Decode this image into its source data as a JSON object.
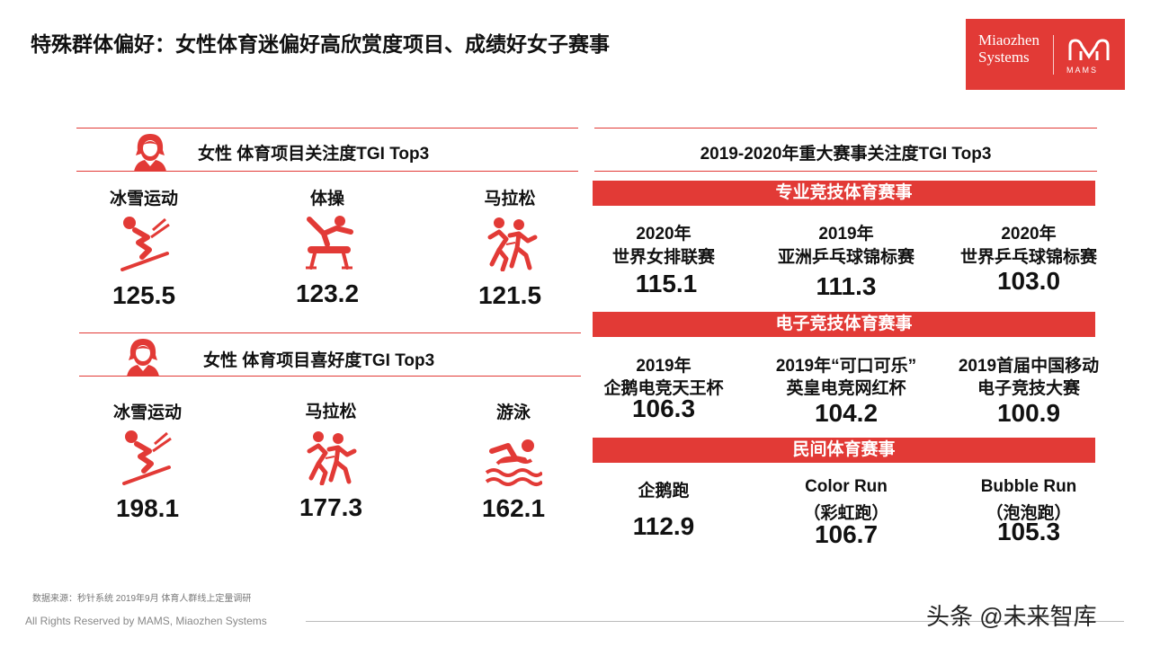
{
  "title": "特殊群体偏好：女性体育迷偏好高欣赏度项目、成绩好女子赛事",
  "logo": {
    "line1": "Miaozhen",
    "line2": "Systems",
    "brand": "MAMS"
  },
  "colors": {
    "accent": "#e23a36"
  },
  "attention": {
    "title": "女性 体育项目关注度TGI Top3",
    "items": [
      {
        "label": "冰雪运动",
        "value": "125.5",
        "icon": "skiing-icon"
      },
      {
        "label": "体操",
        "value": "123.2",
        "icon": "gymnastics-icon"
      },
      {
        "label": "马拉松",
        "value": "121.5",
        "icon": "marathon-icon"
      }
    ]
  },
  "preference": {
    "title": "女性 体育项目喜好度TGI Top3",
    "items": [
      {
        "label": "冰雪运动",
        "value": "198.1",
        "icon": "skiing-icon"
      },
      {
        "label": "马拉松",
        "value": "177.3",
        "icon": "marathon-icon"
      },
      {
        "label": "游泳",
        "value": "162.1",
        "icon": "swimming-icon"
      }
    ]
  },
  "events": {
    "title": "2019-2020年重大赛事关注度TGI Top3",
    "pro": {
      "label": "专业竞技体育赛事",
      "items": [
        {
          "line1": "2020年",
          "line2": "世界女排联赛",
          "value": "115.1"
        },
        {
          "line1": "2019年",
          "line2": "亚洲乒乓球锦标赛",
          "value": "111.3"
        },
        {
          "line1": "2020年",
          "line2": "世界乒乓球锦标赛",
          "value": "103.0"
        }
      ]
    },
    "esports": {
      "label": "电子竞技体育赛事",
      "items": [
        {
          "line1": "2019年",
          "line2": "企鹅电竞天王杯",
          "value": "106.3"
        },
        {
          "line1": "2019年“可口可乐”",
          "line2": "英皇电竞网红杯",
          "value": "104.2"
        },
        {
          "line1": "2019首届中国移动",
          "line2": "电子竞技大赛",
          "value": "100.9"
        }
      ]
    },
    "folk": {
      "label": "民间体育赛事",
      "items": [
        {
          "line1": "企鹅跑",
          "line2": "",
          "value": "112.9"
        },
        {
          "line1": "Color Run",
          "line2": "（彩虹跑）",
          "value": "106.7"
        },
        {
          "line1": "Bubble Run",
          "line2": "（泡泡跑）",
          "value": "105.3"
        }
      ]
    }
  },
  "footnote": "数据来源：秒针系统  2019年9月  体育人群线上定量调研",
  "rights": "All Rights Reserved by MAMS, Miaozhen Systems",
  "watermark": "头条 @未来智库"
}
